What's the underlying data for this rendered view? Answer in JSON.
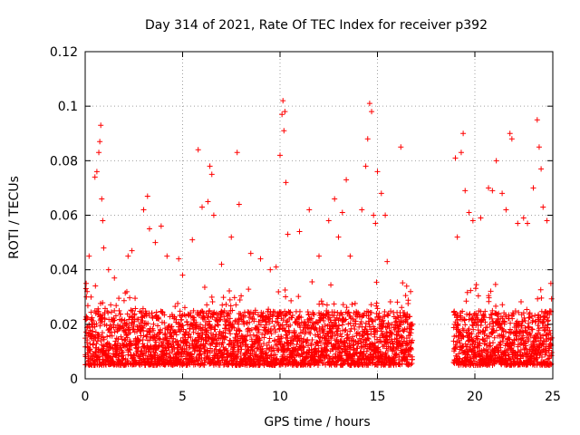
{
  "chart_data": {
    "type": "scatter",
    "title": "Day 314 of 2021, Rate Of TEC Index for receiver p392",
    "xlabel": "GPS time / hours",
    "ylabel": "ROTI / TECUs",
    "xlim": [
      0,
      24
    ],
    "ylim": [
      0,
      0.12
    ],
    "xticks": [
      0,
      5,
      10,
      15,
      20,
      25
    ],
    "yticks": [
      0,
      0.02,
      0.04,
      0.06,
      0.08,
      0.1,
      0.12
    ],
    "grid": true,
    "legend": "none",
    "marker": "+",
    "series": [
      {
        "color": "#ff0000",
        "data_gap_hours": [
          16.8,
          18.9
        ],
        "baseline_range": [
          0.005,
          0.025
        ],
        "points": [
          [
            0.05,
            0.035
          ],
          [
            0.1,
            0.032
          ],
          [
            0.2,
            0.045
          ],
          [
            0.3,
            0.03
          ],
          [
            0.5,
            0.074
          ],
          [
            0.6,
            0.076
          ],
          [
            0.7,
            0.083
          ],
          [
            0.75,
            0.087
          ],
          [
            0.8,
            0.093
          ],
          [
            0.85,
            0.066
          ],
          [
            0.9,
            0.058
          ],
          [
            0.95,
            0.048
          ],
          [
            1.2,
            0.04
          ],
          [
            1.5,
            0.037
          ],
          [
            2.2,
            0.045
          ],
          [
            2.4,
            0.047
          ],
          [
            3.0,
            0.062
          ],
          [
            3.2,
            0.067
          ],
          [
            3.3,
            0.055
          ],
          [
            3.6,
            0.05
          ],
          [
            3.9,
            0.056
          ],
          [
            4.2,
            0.045
          ],
          [
            4.8,
            0.044
          ],
          [
            5.0,
            0.038
          ],
          [
            5.5,
            0.051
          ],
          [
            5.8,
            0.084
          ],
          [
            6.0,
            0.063
          ],
          [
            6.3,
            0.065
          ],
          [
            6.4,
            0.078
          ],
          [
            6.5,
            0.075
          ],
          [
            6.6,
            0.06
          ],
          [
            7.0,
            0.042
          ],
          [
            7.5,
            0.052
          ],
          [
            7.8,
            0.083
          ],
          [
            7.9,
            0.064
          ],
          [
            8.5,
            0.046
          ],
          [
            9.0,
            0.044
          ],
          [
            9.5,
            0.04
          ],
          [
            9.8,
            0.041
          ],
          [
            10.0,
            0.082
          ],
          [
            10.1,
            0.097
          ],
          [
            10.15,
            0.102
          ],
          [
            10.2,
            0.091
          ],
          [
            10.25,
            0.098
          ],
          [
            10.3,
            0.072
          ],
          [
            10.4,
            0.053
          ],
          [
            11.0,
            0.054
          ],
          [
            11.5,
            0.062
          ],
          [
            12.0,
            0.045
          ],
          [
            12.5,
            0.058
          ],
          [
            12.8,
            0.066
          ],
          [
            13.0,
            0.052
          ],
          [
            13.2,
            0.061
          ],
          [
            13.4,
            0.073
          ],
          [
            13.6,
            0.045
          ],
          [
            14.2,
            0.062
          ],
          [
            14.4,
            0.078
          ],
          [
            14.5,
            0.088
          ],
          [
            14.6,
            0.101
          ],
          [
            14.7,
            0.098
          ],
          [
            14.8,
            0.06
          ],
          [
            14.9,
            0.057
          ],
          [
            15.0,
            0.076
          ],
          [
            15.2,
            0.068
          ],
          [
            15.4,
            0.06
          ],
          [
            15.5,
            0.043
          ],
          [
            16.2,
            0.085
          ],
          [
            16.5,
            0.034
          ],
          [
            16.7,
            0.032
          ],
          [
            19.0,
            0.081
          ],
          [
            19.1,
            0.052
          ],
          [
            19.3,
            0.083
          ],
          [
            19.4,
            0.09
          ],
          [
            19.5,
            0.069
          ],
          [
            19.7,
            0.061
          ],
          [
            19.9,
            0.058
          ],
          [
            20.3,
            0.059
          ],
          [
            20.7,
            0.07
          ],
          [
            20.9,
            0.069
          ],
          [
            21.1,
            0.08
          ],
          [
            21.4,
            0.068
          ],
          [
            21.6,
            0.062
          ],
          [
            21.8,
            0.09
          ],
          [
            21.9,
            0.088
          ],
          [
            22.2,
            0.057
          ],
          [
            22.5,
            0.059
          ],
          [
            22.7,
            0.057
          ],
          [
            23.0,
            0.07
          ],
          [
            23.2,
            0.095
          ],
          [
            23.3,
            0.085
          ],
          [
            23.4,
            0.077
          ],
          [
            23.5,
            0.063
          ],
          [
            23.7,
            0.058
          ],
          [
            23.9,
            0.035
          ]
        ]
      }
    ]
  }
}
